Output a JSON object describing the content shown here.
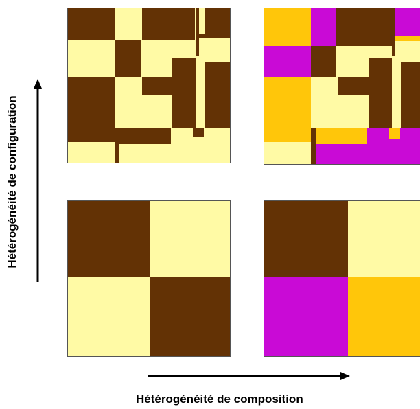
{
  "colors": {
    "brown": "#633205",
    "cream": "#fffaa5",
    "magenta": "#c90ad6",
    "orange": "#ffc60a",
    "panel_border": "#555555"
  },
  "axes": {
    "y_label": "Hétérogénéité de configuration",
    "x_label": "Hétérogénéité de composition"
  },
  "panels": [
    {
      "id": "top-left",
      "classes": 2,
      "pattern": "complex"
    },
    {
      "id": "top-right",
      "classes": 4,
      "pattern": "complex"
    },
    {
      "id": "bottom-left",
      "classes": 2,
      "pattern": "simple-checkerboard"
    },
    {
      "id": "bottom-right",
      "classes": 4,
      "pattern": "simple-checkerboard"
    }
  ]
}
